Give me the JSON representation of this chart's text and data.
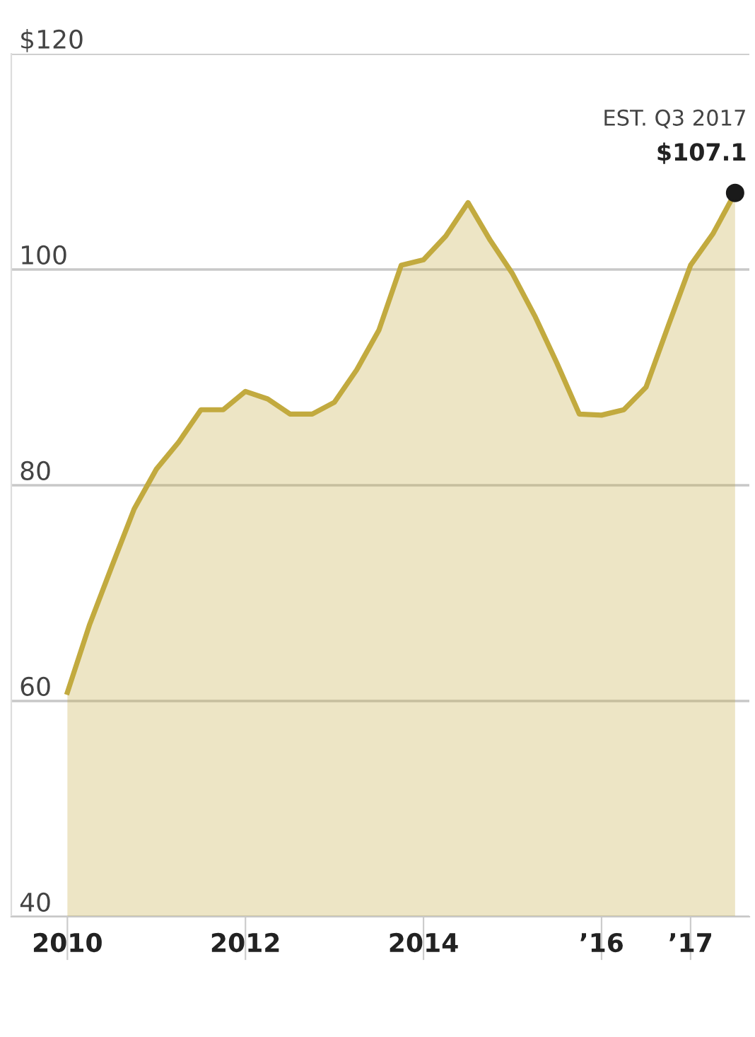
{
  "chart_data": {
    "type": "area",
    "x": [
      2010,
      2010.25,
      2010.5,
      2010.75,
      2011,
      2011.25,
      2011.5,
      2011.75,
      2012,
      2012.25,
      2012.5,
      2012.75,
      2013,
      2013.25,
      2013.5,
      2013.75,
      2014,
      2014.25,
      2014.5,
      2014.75,
      2015,
      2015.25,
      2015.5,
      2015.75,
      2016,
      2016.25,
      2016.5,
      2016.75,
      2017,
      2017.25,
      2017.5
    ],
    "series": [
      {
        "color": "#c2aa3f",
        "values": [
          60.8,
          67.1,
          72.5,
          77.8,
          81.5,
          84.0,
          87.0,
          87.0,
          88.7,
          88.0,
          86.6,
          86.6,
          87.7,
          90.7,
          94.4,
          100.4,
          100.9,
          103.1,
          106.2,
          102.7,
          99.6,
          95.7,
          91.3,
          86.6,
          86.5,
          87.0,
          89.1,
          94.8,
          100.4,
          103.3,
          107.1
        ]
      },
      {
        "type": "scatter",
        "color": "#1a1a1a",
        "marker": "circle",
        "x": [
          2017.5
        ],
        "values": [
          107.1
        ]
      }
    ],
    "xlim": [
      2009.37,
      2017.66
    ],
    "xticks": [
      {
        "value": 2010,
        "label": "2010"
      },
      {
        "value": 2012,
        "label": "2012"
      },
      {
        "value": 2014,
        "label": "2014"
      },
      {
        "value": 2016,
        "label": "’16"
      },
      {
        "value": 2017,
        "label": "’17"
      }
    ],
    "ylim": [
      40,
      120
    ],
    "yticks": [
      40,
      60,
      80,
      100,
      {
        "value": 120,
        "label": "$120"
      }
    ],
    "grid": "y",
    "annotations": [
      {
        "text": "EST. Q3 2017",
        "x": 2017.5,
        "y": 107.1
      },
      {
        "text": "$107.1",
        "x": 2017.5,
        "y": 107.1
      }
    ]
  }
}
